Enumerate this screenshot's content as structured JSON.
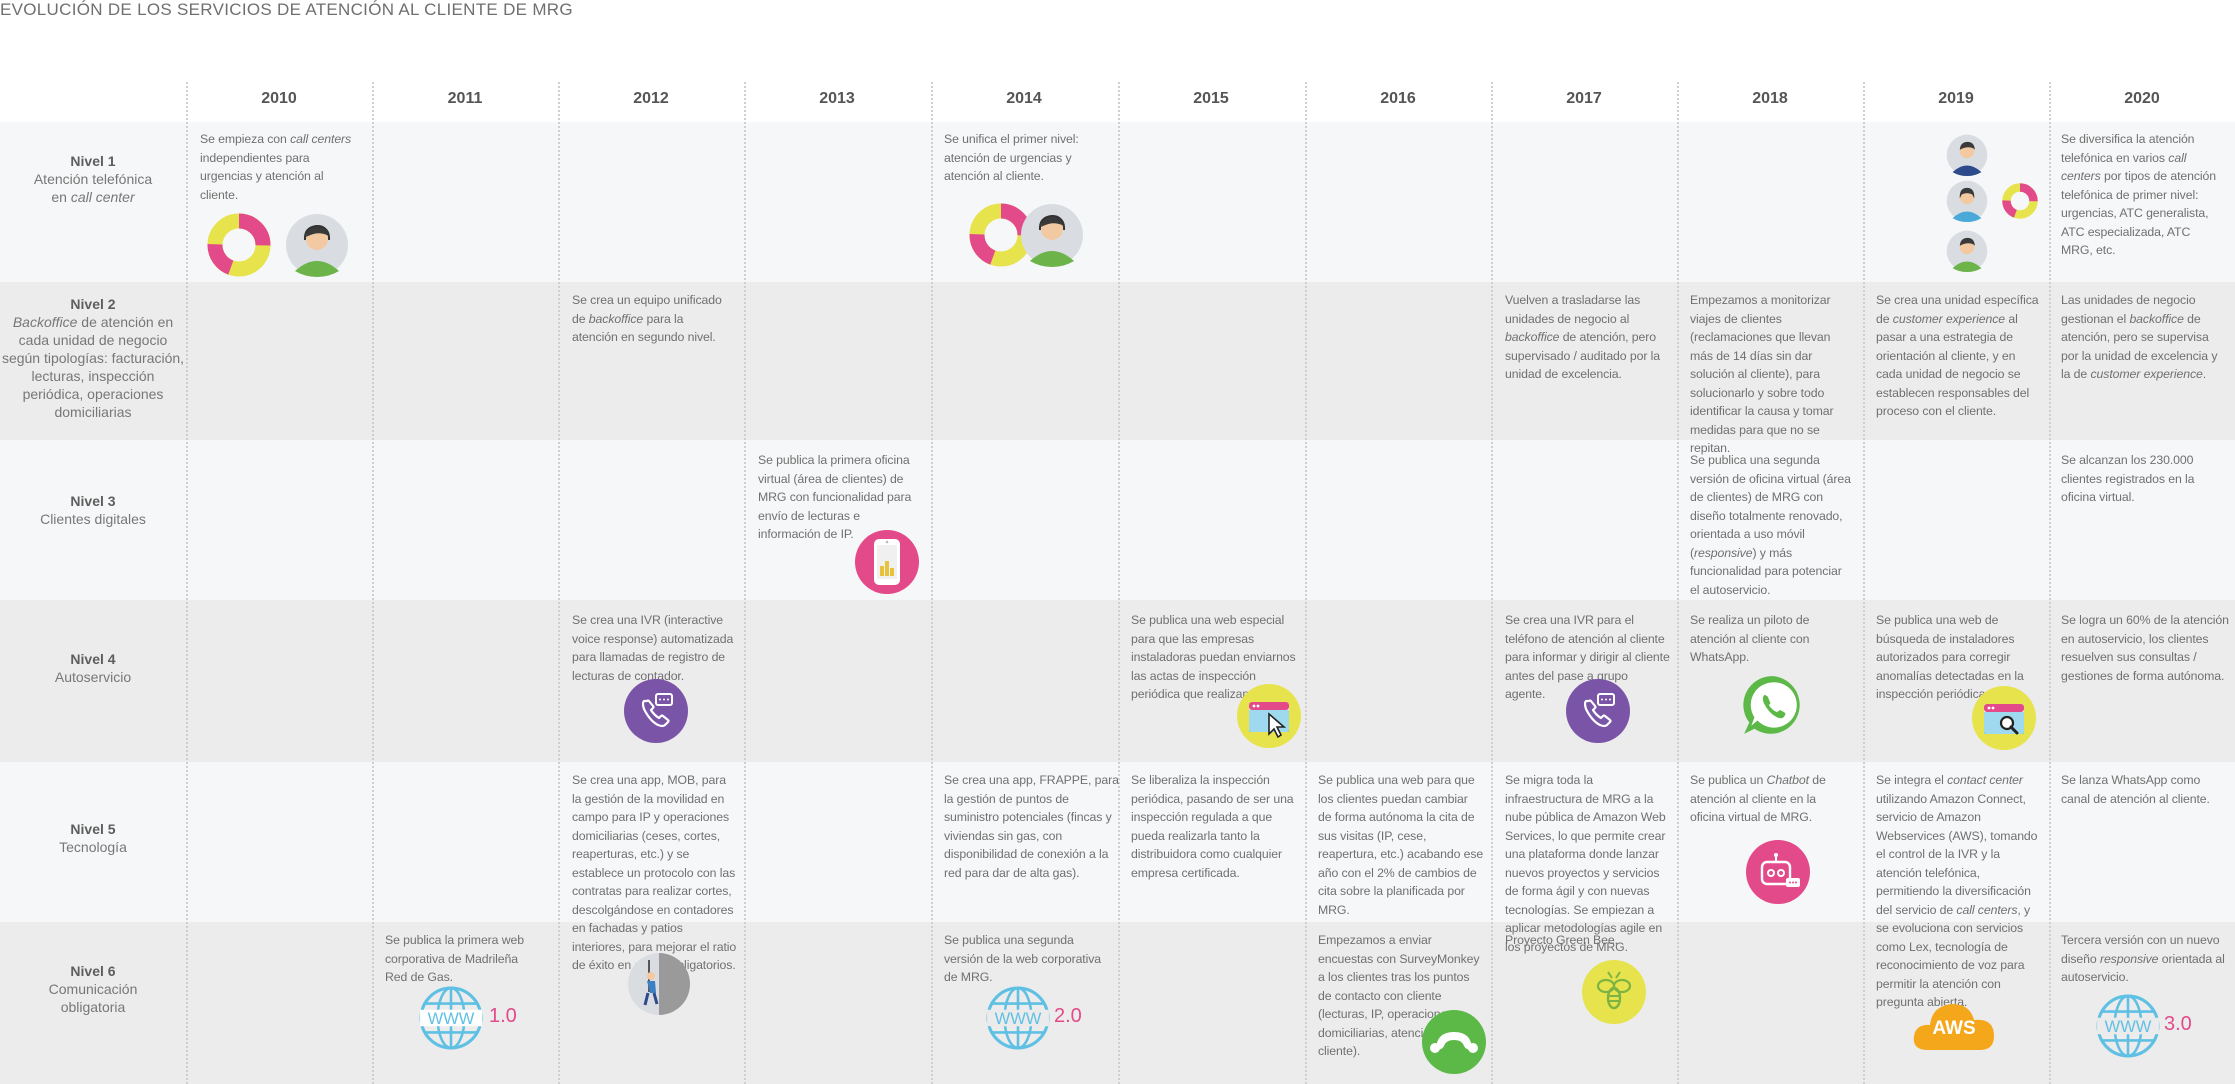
{
  "title": "EVOLUCIÓN DE LOS SERVICIOS DE ATENCIÓN AL CLIENTE DE MRG",
  "years": [
    "2010",
    "2011",
    "2012",
    "2013",
    "2014",
    "2015",
    "2016",
    "2017",
    "2018",
    "2019",
    "2020"
  ],
  "levels": [
    {
      "name": "Nivel 1",
      "desc_a": "Atención telefónica",
      "desc_b": "en ",
      "desc_b_em": "call center"
    },
    {
      "name": "Nivel 2",
      "desc_em": "Backoffice",
      "desc_rest": " de atención en cada unidad de negocio según tipologías: facturación, lecturas, inspección periódica, operaciones domiciliarias"
    },
    {
      "name": "Nivel 3",
      "desc": "Clientes digitales"
    },
    {
      "name": "Nivel 4",
      "desc": "Autoservicio"
    },
    {
      "name": "Nivel 5",
      "desc": "Tecnología"
    },
    {
      "name": "Nivel 6",
      "desc": "Comunicación obligatoria"
    }
  ],
  "cells": {
    "n1_2010_a": "Se empieza con ",
    "n1_2010_em": "call centers",
    "n1_2010_b": " independientes para urgencias y atención al cliente.",
    "n1_2014": "Se unifica el primer nivel: atención de urgencias y atención al cliente.",
    "n1_2020_a": "Se diversifica la atención telefónica en varios ",
    "n1_2020_em": "call centers",
    "n1_2020_b": " por tipos de atención telefónica de primer nivel: urgencias, ATC generalista, ATC especializada, ATC MRG, etc.",
    "n2_2012_a": "Se crea un equipo unificado de ",
    "n2_2012_em": "backoffice",
    "n2_2012_b": " para la atención en segundo nivel.",
    "n2_2017_a": "Vuelven a trasladarse las unidades de negocio al ",
    "n2_2017_em": "backoffice",
    "n2_2017_b": " de atención, pero supervisado / auditado por la unidad de excelencia.",
    "n2_2018": "Empezamos a monitorizar viajes de clientes (reclamaciones que llevan más de 14 días sin dar solución al cliente), para solucionarlo y sobre todo identificar la causa y tomar medidas para que no se repitan.",
    "n2_2019_a": "Se crea una unidad específica de ",
    "n2_2019_em": "customer experience",
    "n2_2019_b": " al pasar a una estrategia de orientación al cliente, y en cada unidad de negocio se establecen responsables del proceso con el cliente.",
    "n2_2020_a": "Las unidades de negocio gestionan el ",
    "n2_2020_em": "backoffice",
    "n2_2020_b": " de atención, pero se supervisa por la unidad de excelencia y la de ",
    "n2_2020_em2": "customer experience",
    "n2_2020_c": ".",
    "n3_2013": "Se publica la primera oficina virtual (área de clientes) de MRG con funcionalidad para envío de lecturas e información de IP.",
    "n3_2018_a": "Se publica una segunda versión de oficina virtual (área de clientes) de MRG con diseño totalmente renovado, orientada a uso móvil (",
    "n3_2018_em": "responsive",
    "n3_2018_b": ") y más funcionalidad para potenciar el autoservicio.",
    "n3_2020": "Se alcanzan los  230.000 clientes registrados en la oficina virtual.",
    "n4_2012": "Se crea una IVR (interactive voice response) automatizada para llamadas de registro de lecturas de contador.",
    "n4_2015": "Se publica una web especial para que las empresas instaladoras puedan enviarnos las actas de inspección periódica que realizan.",
    "n4_2017": "Se crea una IVR para el teléfono de atención al cliente para informar y dirigir al cliente antes del pase a grupo agente.",
    "n4_2018": "Se realiza un piloto de atención al cliente con WhatsApp.",
    "n4_2019": "Se publica una web de búsqueda de instaladores autorizados para corregir anomalías detectadas en la inspección periódica.",
    "n4_2020": "Se logra un 60% de la atención en autoservicio, los clientes resuelven sus consultas / gestiones de forma autónoma.",
    "n5_2012": "Se crea una app, MOB, para la gestión de la movilidad en campo para IP y operaciones domiciliarias (ceses, cortes, reaperturas, etc.) y se establece un protocolo con las contratas para realizar cortes, descolgándose en contadores en fachadas y patios interiores, para mejorar el ratio de éxito en cortes obligatorios.",
    "n5_2014": "Se crea una app, FRAPPE, para la gestión de puntos de suministro potenciales (fincas y viviendas sin gas, con disponibilidad de conexión a la red para dar de alta gas).",
    "n5_2015": "Se liberaliza la inspección periódica, pasando de ser una inspección regulada a que pueda realizarla tanto la distribuidora como cualquier empresa certificada.",
    "n5_2016": "Se publica una web para que los clientes puedan cambiar de forma autónoma la cita de sus visitas (IP, cese, reapertura, etc.) acabando ese año con el 2% de cambios de cita sobre la planificada por MRG.",
    "n5_2017": "Se migra toda la infraestructura de MRG a la nube pública de Amazon Web Services, lo que permite crear una plataforma donde lanzar nuevos proyectos y servicios de forma ágil y con nuevas tecnologías. Se empiezan a aplicar metodologías agile en los proyectos de MRG.",
    "n5_2018_a": "Se publica un ",
    "n5_2018_em": "Chatbot",
    "n5_2018_b": " de atención al cliente en la oficina virtual de MRG.",
    "n5_2019_a": "Se integra el ",
    "n5_2019_em": "contact center",
    "n5_2019_b": " utilizando Amazon Connect, servicio de Amazon Webservices (AWS), tomando el control de la IVR y la atención telefónica, permitiendo la diversificación del servicio de ",
    "n5_2019_em2": "call centers",
    "n5_2019_c": ", y se evoluciona con servicios como Lex, tecnología de reconocimiento de voz para permitir la atención con pregunta abierta.",
    "n5_2020": "Se lanza WhatsApp como canal de atención al cliente.",
    "n6_2011": "Se publica la primera web corporativa de Madrileña Red de Gas.",
    "n6_2014": "Se publica una segunda versión de la web corporativa de MRG.",
    "n6_2016": "Empezamos a enviar encuestas con SurveyMonkey a los clientes tras los puntos de contacto con cliente (lecturas, IP, operaciones domiciliarias, atención al cliente).",
    "n6_2017": "Proyecto Green Bee.",
    "n6_2020_a": "Tercera versión con un nuevo diseño ",
    "n6_2020_em": "responsive",
    "n6_2020_b": " orientada al autoservicio."
  },
  "icons": {
    "www_2011_label": "1.0",
    "www_2014_label": "2.0",
    "www_2020_label": "3.0",
    "aws_label": "AWS"
  },
  "colors": {
    "pink": "#e34a8a",
    "yellow": "#e7e34c",
    "purple": "#7a54a7",
    "whatsapp": "#5cb947",
    "www_blue": "#5fc0e4",
    "aws_orange": "#f5a71b",
    "surveymonkey": "#5cb947"
  }
}
